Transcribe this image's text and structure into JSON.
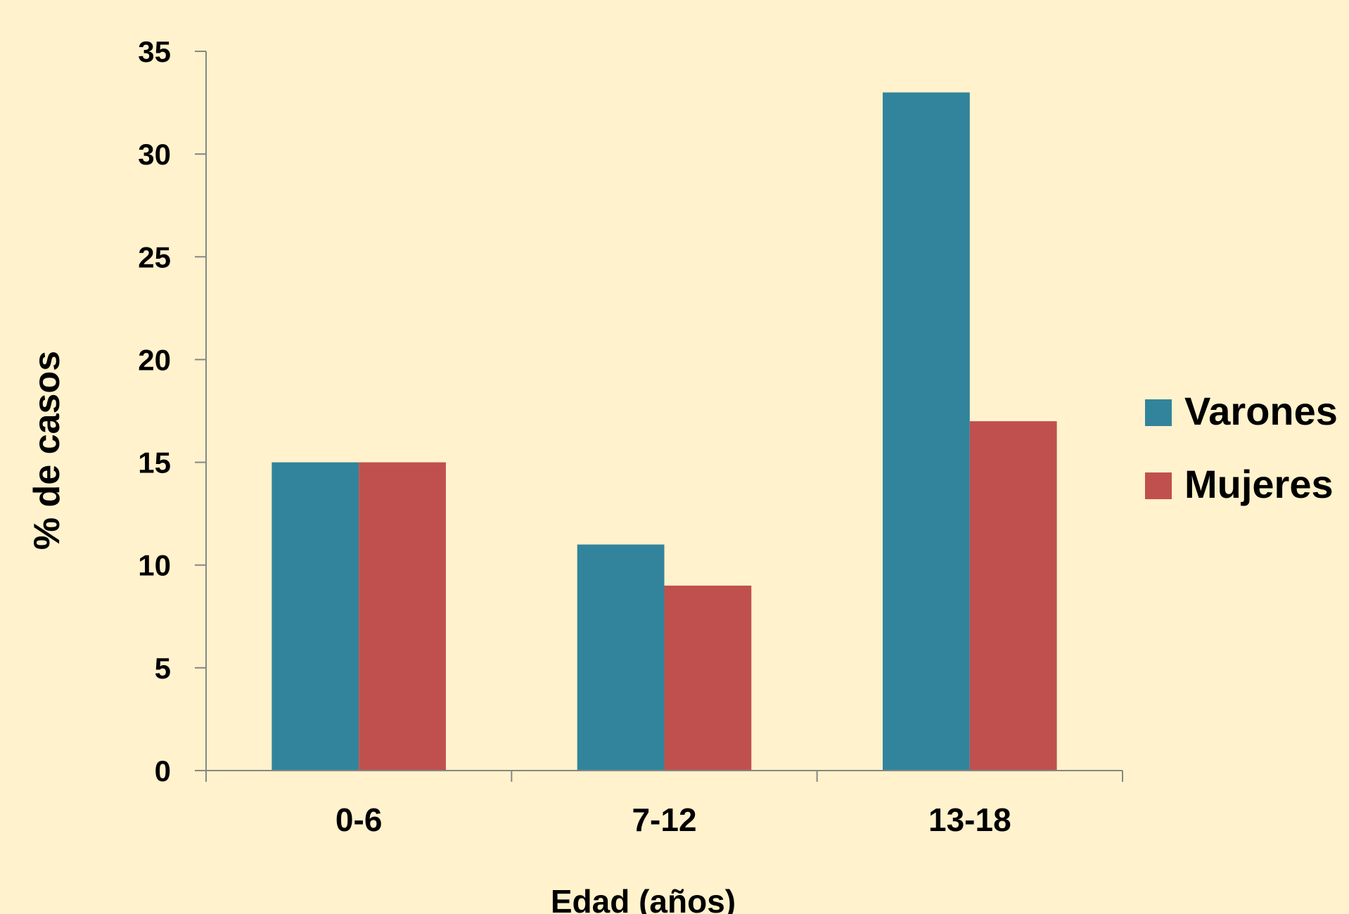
{
  "chart_data": {
    "type": "bar",
    "xlabel": "Edad (años)",
    "ylabel": "% de casos",
    "categories": [
      "0-6",
      "7-12",
      "13-18"
    ],
    "ylim": [
      0,
      35
    ],
    "yticks": [
      "0",
      "5",
      "10",
      "15",
      "20",
      "25",
      "30",
      "35"
    ],
    "ytick_values": [
      0,
      5,
      10,
      15,
      20,
      25,
      30,
      35
    ],
    "grid": false,
    "legend_position": "right",
    "series": [
      {
        "name": "Varones",
        "values": [
          15,
          11,
          33
        ],
        "color": "#31849B"
      },
      {
        "name": "Mujeres",
        "values": [
          15,
          9,
          17
        ],
        "color": "#C0504D"
      }
    ],
    "background": "#FFF2CC"
  }
}
